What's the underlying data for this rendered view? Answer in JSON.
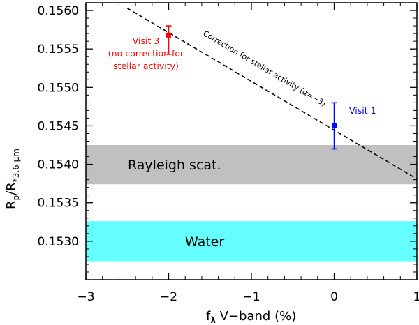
{
  "chart_data": {
    "type": "scatter",
    "xlabel": "f",
    "xlabel_sub": "λ",
    "xlabel_rest": " V−band (%)",
    "ylabel": "R",
    "ylabel_sub_p": "p",
    "ylabel_mid": "/R",
    "ylabel_sub_star": "*3.6 μm",
    "xlim": [
      -3,
      1
    ],
    "ylim": [
      0.1525,
      0.1561
    ],
    "x_ticks": [
      -3,
      -2,
      -1,
      0,
      1
    ],
    "x_tick_labels": [
      "−3",
      "−2",
      "−1",
      "0",
      "1"
    ],
    "y_ticks": [
      0.153,
      0.1535,
      0.154,
      0.1545,
      0.155,
      0.1555,
      0.156
    ],
    "y_tick_labels": [
      "0.1530",
      "0.1535",
      "0.1540",
      "0.1545",
      "0.1550",
      "0.1555",
      "0.1560"
    ],
    "grid": false,
    "points": [
      {
        "name": "Visit 1",
        "x": 0.0,
        "y": 0.1545,
        "err_low": 0.0003,
        "err_high": 0.0003,
        "color": "#0000ff"
      },
      {
        "name": "Visit 3",
        "x": -2.0,
        "y": 0.15568,
        "err_low": 0.00025,
        "err_high": 0.00012,
        "color": "#ff0000"
      }
    ],
    "bands": [
      {
        "label": "Rayleigh scat.",
        "y_low": 0.15374,
        "y_high": 0.15425,
        "color": "#c0c0c0"
      },
      {
        "label": "Water",
        "y_low": 0.15274,
        "y_high": 0.15326,
        "color": "#66ffff"
      }
    ],
    "line": {
      "x": [
        -2.5,
        1.0
      ],
      "y": [
        0.15603,
        0.15381
      ],
      "label_prefix": "Correction for stellar activity (",
      "label_alpha": "α",
      "label_suffix": "=−3)"
    },
    "annotations": {
      "visit1": "Visit 1",
      "visit3_line1": "Visit 3",
      "visit3_line2": "(no correction for",
      "visit3_line3": "stellar activity)"
    },
    "colors": {
      "visit1": "#0000ff",
      "visit3": "#ff0000",
      "axis": "#000000"
    }
  }
}
